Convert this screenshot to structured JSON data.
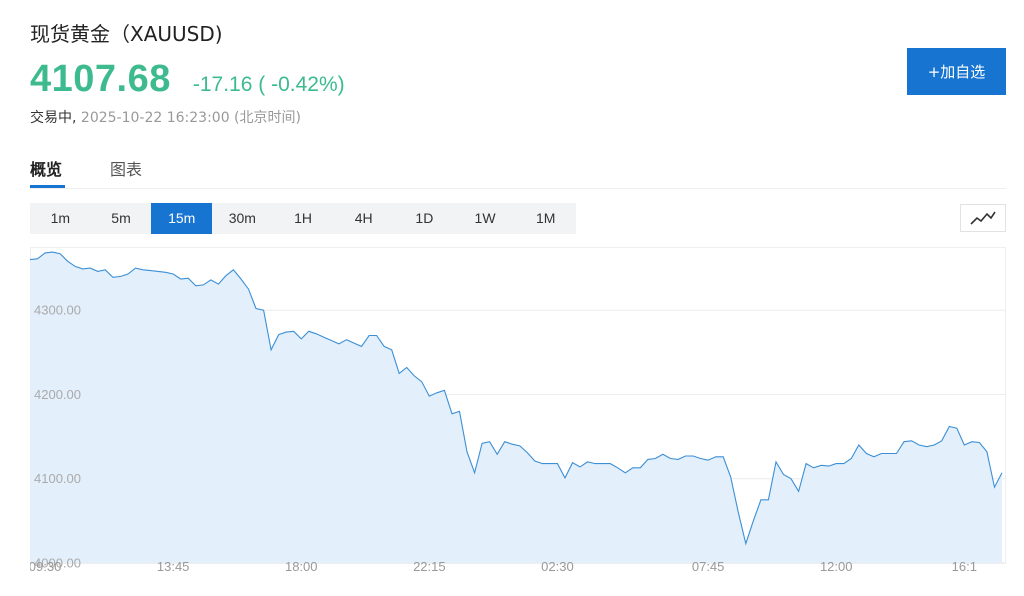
{
  "header": {
    "title": "现货黄金（XAUUSD)",
    "price": "4107.68",
    "change": "-17.16 ( -0.42%)",
    "trading_status": "交易中,",
    "timestamp": "2025-10-22 16:23:00 (北京时间)"
  },
  "actions": {
    "add_watchlist_label": "+加自选"
  },
  "tabs": [
    {
      "label": "概览",
      "active": true
    },
    {
      "label": "图表",
      "active": false
    }
  ],
  "intervals": [
    {
      "label": "1m",
      "active": false
    },
    {
      "label": "5m",
      "active": false
    },
    {
      "label": "15m",
      "active": true
    },
    {
      "label": "30m",
      "active": false
    },
    {
      "label": "1H",
      "active": false
    },
    {
      "label": "4H",
      "active": false
    },
    {
      "label": "1D",
      "active": false
    },
    {
      "label": "1W",
      "active": false
    },
    {
      "label": "1M",
      "active": false
    }
  ],
  "chart_type_icon": "line-chart-icon",
  "colors": {
    "up_green": "#3dbb8f",
    "accent_blue": "#1874d1",
    "line": "#3b8fd6",
    "area_fill": "#e3effb"
  },
  "chart_data": {
    "type": "area",
    "ylim": [
      4000,
      4375
    ],
    "y_ticks": [
      {
        "value": 4300,
        "label": "4300.00"
      },
      {
        "value": 4200,
        "label": "4200.00"
      },
      {
        "value": 4100,
        "label": "4100.00"
      },
      {
        "value": 4000,
        "label": "4000.00"
      }
    ],
    "x_ticks": [
      "09:30",
      "13:45",
      "18:00",
      "22:15",
      "02:30",
      "07:45",
      "12:00",
      "16:1"
    ],
    "x_tick_index": [
      2,
      19,
      36,
      53,
      70,
      90,
      107,
      124
    ],
    "series": [
      {
        "values": [
          4360,
          4361,
          4368,
          4369,
          4367,
          4358,
          4352,
          4349,
          4350,
          4346,
          4348,
          4339,
          4340,
          4343,
          4350,
          4348,
          4347,
          4346,
          4345,
          4343,
          4337,
          4338,
          4329,
          4330,
          4336,
          4331,
          4341,
          4348,
          4337,
          4325,
          4302,
          4300,
          4253,
          4271,
          4274,
          4275,
          4266,
          4275,
          4272,
          4268,
          4264,
          4260,
          4265,
          4261,
          4257,
          4270,
          4270,
          4257,
          4253,
          4225,
          4232,
          4222,
          4215,
          4198,
          4202,
          4205,
          4177,
          4180,
          4132,
          4107,
          4142,
          4144,
          4129,
          4144,
          4141,
          4139,
          4131,
          4121,
          4118,
          4118,
          4118,
          4101,
          4119,
          4114,
          4120,
          4118,
          4118,
          4118,
          4113,
          4107,
          4113,
          4113,
          4123,
          4124,
          4129,
          4124,
          4123,
          4127,
          4127,
          4124,
          4122,
          4126,
          4126,
          4102,
          4060,
          4023,
          4050,
          4075,
          4075,
          4120,
          4105,
          4100,
          4085,
          4118,
          4113,
          4116,
          4115,
          4118,
          4118,
          4124,
          4140,
          4130,
          4126,
          4130,
          4130,
          4130,
          4144,
          4145,
          4140,
          4138,
          4140,
          4145,
          4162,
          4160,
          4140,
          4144,
          4143,
          4132,
          4090,
          4107
        ]
      }
    ]
  }
}
